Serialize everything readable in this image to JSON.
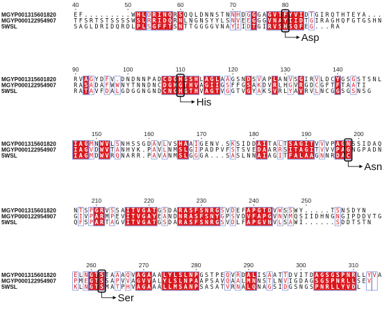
{
  "colors": {
    "conserved_fill": "#d9141b",
    "conserved_text": "#ffffff",
    "similar_text": "#d9141b",
    "box_stroke": "#5a6cc8",
    "default_text": "#111111",
    "highlight_box": "#111111"
  },
  "alignment": {
    "sequences": [
      "MGYP001315601820",
      "MGYP000122954907",
      "5WSL"
    ],
    "blocks": [
      {
        "positions": [
          {
            "label": "40",
            "col": 0
          },
          {
            "label": "50",
            "col": 10
          },
          {
            "label": "60",
            "col": 20
          },
          {
            "label": "70",
            "col": 30
          },
          {
            "label": "80",
            "col": 40
          }
        ],
        "rows": [
          "EF.........WHLDRINQRSQQLDNNSTNNHDGGGAGVTFYVIDTGIRQTHTEYA...SS",
          "TFSRTSTSSSSWSLRRIDQRNLNGNSYYLSNVEEGGGVNAYIIDTGIRAGHQFGTGSHN",
          "SAGLDRIDQRDLPLSGFFTSNTTGGGGVNAYIIDTGIRVSHSQFEG...RA"
        ],
        "conserved": [
          12,
          13,
          15,
          16,
          17,
          18,
          20,
          34,
          37,
          38,
          39,
          40,
          41,
          42,
          43
        ],
        "similar": [
          14,
          30,
          31,
          33,
          45
        ],
        "callout": {
          "label": "Asp",
          "col": 40
        }
      },
      {
        "positions": [
          {
            "label": "90",
            "col": 0
          },
          {
            "label": "100",
            "col": 10
          },
          {
            "label": "110",
            "col": 20
          },
          {
            "label": "120",
            "col": 30
          },
          {
            "label": "130",
            "col": 40
          },
          {
            "label": "140",
            "col": 50
          }
        ],
        "rows": [
          "RVAGYDFV.DNDNNPADCDGHGSHLAGLAAGSNDSVAPLANVSGIRVLDCYGSGSTSNL",
          "RASADAFWWNYTNNDNCDGHGTHVAGIIGSFFGSAKDVRLHGVRGDCGFTFTAATI",
          "RATAVFDALGDGGNGNDCNGHGTHVAGTVGGTVGYAKSVRLYAVRVLNCGGSGSNSG"
        ],
        "conserved": [
          2,
          17,
          18,
          19,
          20,
          21,
          22,
          23,
          25,
          26,
          27,
          33,
          38,
          43,
          50
        ],
        "similar": [
          3,
          6,
          8,
          29,
          35,
          41,
          46,
          53
        ],
        "callout": {
          "label": "His",
          "col": 20
        }
      },
      {
        "positions": [
          {
            "label": "150",
            "col": 4
          },
          {
            "label": "160",
            "col": 14
          },
          {
            "label": "170",
            "col": 24
          },
          {
            "label": "180",
            "col": 34
          },
          {
            "label": "190",
            "col": 44
          },
          {
            "label": "200",
            "col": 54
          }
        ],
        "rows": [
          "IAGMNWVLSNHSSGDAVLVSHAAIGENV.SKSIDDAITALTSAGITVVVPAGNSSIDAQ",
          "IAGVDWVTANHVK.PAVLNMSLGIPADPVFSTSVEDAARRSITAGITVVVPAGNGPADN",
          "IAGMDWVRQNARR.PAVANMSLGGGA...SASLNNAIAGITFALAAGNNRDAC"
        ],
        "conserved": [
          0,
          1,
          2,
          5,
          6,
          20,
          21,
          35,
          36,
          41,
          42,
          43,
          44,
          45,
          50,
          51,
          52
        ],
        "similar": [
          3,
          8,
          15,
          17,
          23,
          30,
          39,
          47
        ],
        "callout": {
          "label": "Asn",
          "col": 52
        }
      },
      {
        "positions": [
          {
            "label": "210",
            "col": 4
          },
          {
            "label": "220",
            "col": 14
          },
          {
            "label": "230",
            "col": 24
          },
          {
            "label": "240",
            "col": 34
          },
          {
            "label": "250",
            "col": 44
          }
        ],
        "rows": [
          "NTSPGRVSSAITVGATGSDARASFSNRGSVDEFAPGTDVWSSWY.....TSNSDYN",
          "GIVPARMPEVITVGAYEANDNRASFSNYGPSVDVFAPGVNVMQSIIDHNGNGIPDDVTG",
          "QFSPARTAGVITVGATGSDARASFSNRGSVDLFAPGVNVLSAWI......SDDTSTN"
        ],
        "conserved": [
          4,
          5,
          10,
          11,
          12,
          13,
          14,
          15,
          20,
          21,
          22,
          23,
          24,
          25,
          26,
          27,
          33,
          34,
          35,
          36,
          37
        ],
        "similar": [
          1,
          3,
          7,
          17,
          28,
          30,
          39,
          41,
          50
        ],
        "callout": null
      },
      {
        "positions": [
          {
            "label": "260",
            "col": 3
          },
          {
            "label": "270",
            "col": 13
          },
          {
            "label": "280",
            "col": 23
          },
          {
            "label": "290",
            "col": 33
          },
          {
            "label": "300",
            "col": 43
          },
          {
            "label": "310",
            "col": 53
          }
        ],
        "rows": [
          "ELNGTSTAAAQVAGAAALYLSLNPGSTPEQVRDALISAATTDVITDAGSGSPNRLLYVAR",
          "PMEGTSSAPVVAGVVALYLSLNPAAPSAVQAALMNNSTLNVIGDAGSGSPNRLLSEV",
          "KLNGTSMATPHVAGAAALLMSANPSASATVRNALQNAGSIDGSNGSPNRLLYVDL"
        ],
        "conserved": [
          3,
          4,
          5,
          12,
          13,
          14,
          17,
          18,
          19,
          20,
          21,
          22,
          23,
          33,
          34,
          46,
          47,
          48,
          49,
          50,
          51,
          52,
          53
        ],
        "similar": [
          0,
          2,
          8,
          10,
          29,
          31,
          37,
          40,
          56,
          57
        ],
        "callout": {
          "label": "Ser",
          "col": 5
        }
      }
    ]
  }
}
